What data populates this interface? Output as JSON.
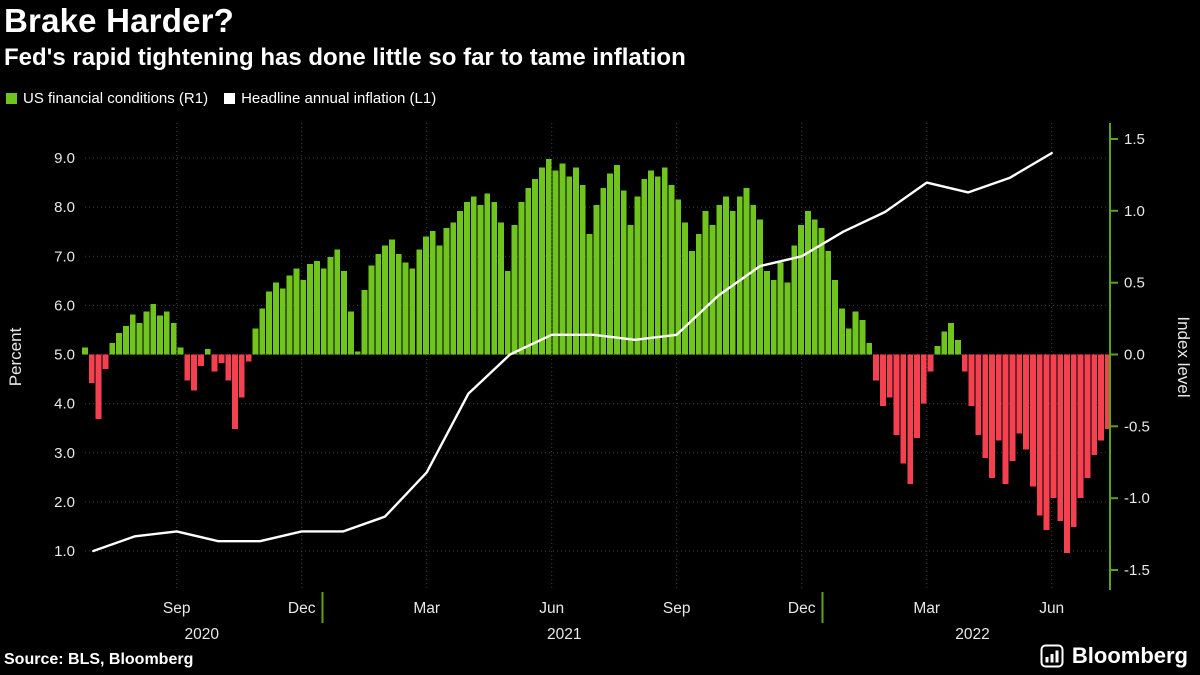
{
  "header": {
    "title": "Brake Harder?",
    "subtitle": "Fed's rapid tightening has done little so far to tame inflation"
  },
  "legend": [
    {
      "label": "US financial conditions (R1)",
      "color": "#6fc41d"
    },
    {
      "label": "Headline annual inflation (L1)",
      "color": "#ffffff"
    }
  ],
  "footer": {
    "source": "Source: BLS, Bloomberg",
    "brand": "Bloomberg"
  },
  "colors": {
    "background": "#000000",
    "bar_positive": "#6fc41d",
    "bar_negative": "#f5414f",
    "line": "#ffffff",
    "right_axis": "#5da317",
    "grid": "#3e3e3e",
    "tick_text": "#e8e8e8"
  },
  "chart_data": {
    "type": "bar+line",
    "title": "Brake Harder?",
    "subtitle": "Fed's rapid tightening has done little so far to tame inflation",
    "left_axis": {
      "title": "Percent",
      "ticks": [
        9.0,
        8.0,
        7.0,
        6.0,
        5.0,
        4.0,
        3.0,
        2.0,
        1.0
      ],
      "range": [
        0.2,
        9.7
      ]
    },
    "right_axis": {
      "title": "Index level",
      "ticks": [
        1.5,
        1.0,
        0.5,
        0.0,
        -0.5,
        -1.0,
        -1.5
      ],
      "range": [
        -1.64,
        1.61
      ]
    },
    "x_axis": {
      "span_months": 24.6,
      "start_label": "Jul 2020",
      "end_label": "Aug 2022",
      "month_ticks": [
        {
          "label": "Sep",
          "t": 2.2
        },
        {
          "label": "Dec",
          "t": 5.2
        },
        {
          "label": "Mar",
          "t": 8.2
        },
        {
          "label": "Jun",
          "t": 11.2
        },
        {
          "label": "Sep",
          "t": 14.2
        },
        {
          "label": "Dec",
          "t": 17.2
        },
        {
          "label": "Mar",
          "t": 20.2
        },
        {
          "label": "Jun",
          "t": 23.2
        }
      ],
      "year_labels": [
        {
          "label": "2020",
          "t": 2.8
        },
        {
          "label": "2021",
          "t": 11.5
        },
        {
          "label": "2022",
          "t": 21.3
        }
      ],
      "year_boundaries": [
        5.7,
        17.7
      ]
    },
    "series": [
      {
        "name": "US financial conditions (R1)",
        "axis": "right",
        "type": "bar",
        "span_months": 24.55,
        "color_positive": "#6fc41d",
        "color_negative": "#f5414f",
        "values": [
          0.05,
          -0.2,
          -0.45,
          -0.1,
          0.08,
          0.15,
          0.2,
          0.28,
          0.22,
          0.3,
          0.35,
          0.27,
          0.3,
          0.22,
          0.05,
          -0.18,
          -0.25,
          -0.08,
          0.04,
          -0.12,
          -0.06,
          -0.18,
          -0.52,
          -0.3,
          -0.05,
          0.18,
          0.32,
          0.44,
          0.5,
          0.46,
          0.55,
          0.6,
          0.52,
          0.63,
          0.65,
          0.6,
          0.68,
          0.73,
          0.58,
          0.3,
          0.02,
          0.45,
          0.62,
          0.7,
          0.76,
          0.8,
          0.7,
          0.64,
          0.6,
          0.73,
          0.82,
          0.86,
          0.76,
          0.88,
          0.92,
          1.0,
          1.06,
          1.1,
          1.04,
          1.12,
          1.06,
          0.92,
          0.58,
          0.9,
          1.06,
          1.16,
          1.22,
          1.3,
          1.36,
          1.28,
          1.33,
          1.24,
          1.3,
          1.18,
          0.84,
          1.04,
          1.16,
          1.26,
          1.32,
          1.14,
          0.9,
          1.1,
          1.22,
          1.28,
          1.24,
          1.3,
          1.18,
          1.08,
          0.92,
          0.72,
          0.84,
          1.0,
          0.9,
          1.04,
          1.1,
          1.0,
          1.1,
          1.16,
          1.04,
          0.94,
          0.58,
          0.52,
          0.64,
          0.5,
          0.76,
          0.9,
          1.0,
          0.94,
          0.88,
          0.72,
          0.52,
          0.32,
          0.18,
          0.3,
          0.24,
          0.08,
          -0.18,
          -0.36,
          -0.3,
          -0.56,
          -0.76,
          -0.9,
          -0.58,
          -0.34,
          -0.12,
          0.06,
          0.16,
          0.22,
          0.1,
          -0.12,
          -0.36,
          -0.56,
          -0.72,
          -0.86,
          -0.6,
          -0.9,
          -0.74,
          -0.55,
          -0.66,
          -0.92,
          -1.12,
          -1.22,
          -1.0,
          -1.16,
          -1.38,
          -1.2,
          -1.0,
          -0.86,
          -0.7,
          -0.6,
          -0.52
        ]
      },
      {
        "name": "Headline annual inflation (L1)",
        "axis": "left",
        "type": "line",
        "color": "#ffffff",
        "x_months": [
          0.2,
          1.2,
          2.2,
          3.2,
          4.2,
          5.2,
          6.2,
          7.2,
          8.2,
          9.2,
          10.2,
          11.2,
          12.2,
          13.2,
          14.2,
          15.2,
          16.2,
          17.2,
          18.2,
          19.2,
          20.2,
          21.2,
          22.2,
          23.2
        ],
        "values": [
          1.0,
          1.3,
          1.4,
          1.2,
          1.2,
          1.4,
          1.4,
          1.7,
          2.6,
          4.2,
          5.0,
          5.4,
          5.4,
          5.3,
          5.4,
          6.2,
          6.8,
          7.0,
          7.5,
          7.9,
          8.5,
          8.3,
          8.6,
          9.1
        ]
      }
    ]
  }
}
